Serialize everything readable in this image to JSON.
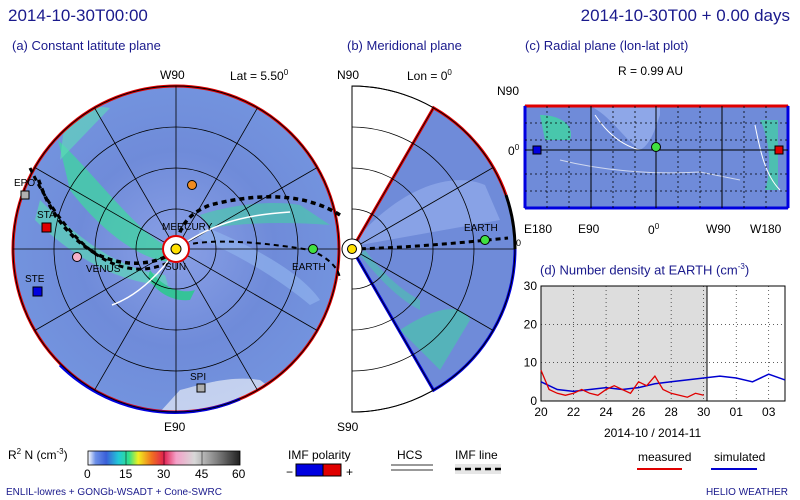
{
  "header": {
    "left_time": "2014-10-30T00:00",
    "right_time": "2014-10-30T00 + 0.00 days"
  },
  "panel_a": {
    "title": "(a) Constant latitute plane",
    "top_label": "W90",
    "bottom_label": "E90",
    "lat_label": "Lat = 5.50",
    "lat_sup": "0",
    "bodies": [
      "EPO",
      "STA",
      "STE",
      "VENUS",
      "MERCURY",
      "SUN",
      "EARTH",
      "SPI"
    ]
  },
  "panel_b": {
    "title": "(b) Meridional plane",
    "top_label": "N90",
    "bottom_label": "S90",
    "lon_label": "Lon = 0",
    "lon_sup": "0",
    "earth_label": "EARTH"
  },
  "panel_c": {
    "title": "(c) Radial plane (lon-lat plot)",
    "r_label": "R = 0.99 AU",
    "y_top": "N90",
    "y_mid": "0",
    "y_mid_sup": "0",
    "y_bot_sup": "0",
    "x_labels": [
      "E180",
      "E90",
      "0",
      "W90",
      "W180"
    ]
  },
  "panel_d": {
    "title": "(d) Number density at EARTH (cm",
    "title_sup": "-3",
    "title_end": ")",
    "y_ticks": [
      "30",
      "20",
      "10",
      "0"
    ],
    "x_ticks": [
      "20",
      "22",
      "24",
      "26",
      "28",
      "30",
      "01",
      "03"
    ],
    "x_axis_label": "2014-10 / 2014-11"
  },
  "chart_data": {
    "type": "line",
    "title": "(d) Number density at EARTH (cm-3)",
    "xlabel": "2014-10 / 2014-11",
    "ylabel": "",
    "ylim": [
      0,
      30
    ],
    "xlim": [
      "2014-10-20",
      "2014-11-04"
    ],
    "grid": true,
    "series": [
      {
        "name": "measured",
        "color": "#e00000",
        "x": [
          "2014-10-20.0",
          "2014-10-20.5",
          "2014-10-21.0",
          "2014-10-21.5",
          "2014-10-22.0",
          "2014-10-22.5",
          "2014-10-23.0",
          "2014-10-23.5",
          "2014-10-24.0",
          "2014-10-24.5",
          "2014-10-25.0",
          "2014-10-25.5",
          "2014-10-26.0",
          "2014-10-26.5",
          "2014-10-27.0",
          "2014-10-27.5",
          "2014-10-28.0",
          "2014-10-28.5",
          "2014-10-29.0",
          "2014-10-29.5",
          "2014-10-30.0"
        ],
        "values": [
          8,
          3,
          2,
          1.5,
          2,
          3,
          2,
          1.5,
          3,
          4,
          3,
          2,
          5,
          4,
          6.5,
          3,
          2,
          1.5,
          1,
          2,
          1.5
        ]
      },
      {
        "name": "simulated",
        "color": "#0000d0",
        "x": [
          "2014-10-20.0",
          "2014-10-21.0",
          "2014-10-22.0",
          "2014-10-23.0",
          "2014-10-24.0",
          "2014-10-25.0",
          "2014-10-26.0",
          "2014-10-27.0",
          "2014-10-28.0",
          "2014-10-29.0",
          "2014-10-30.0",
          "2014-10-31.0",
          "2014-11-01.0",
          "2014-11-02.0",
          "2014-11-03.0",
          "2014-11-04.0"
        ],
        "values": [
          5,
          3,
          2.5,
          3,
          3.5,
          3,
          3.5,
          4.5,
          5,
          5.5,
          6,
          6.5,
          6,
          5,
          7,
          5.5
        ]
      }
    ],
    "shaded_region": [
      "2014-10-20",
      "2014-10-30"
    ],
    "now_line": "2014-10-30"
  },
  "colorbar": {
    "label": "R",
    "label_sup": "2",
    "label_mid": " N (cm",
    "label_sup2": "-3",
    "label_end": ")",
    "ticks": [
      "0",
      "15",
      "30",
      "45",
      "60"
    ],
    "range": [
      0,
      60
    ]
  },
  "legend": {
    "imf_polarity": "IMF polarity",
    "minus": "−",
    "plus": "+",
    "hcs": "HCS",
    "imf_line": "IMF line",
    "measured": "measured",
    "simulated": "simulated"
  },
  "footer": {
    "left": "ENLIL-lowres + GONGb-WSADT + Cone-SWRC",
    "right": "HELIO WEATHER"
  },
  "colors": {
    "header_blue": "#1a1a8c",
    "positive_polarity": "#e00000",
    "negative_polarity": "#0000e0",
    "background_field": "#6f8bd9"
  }
}
